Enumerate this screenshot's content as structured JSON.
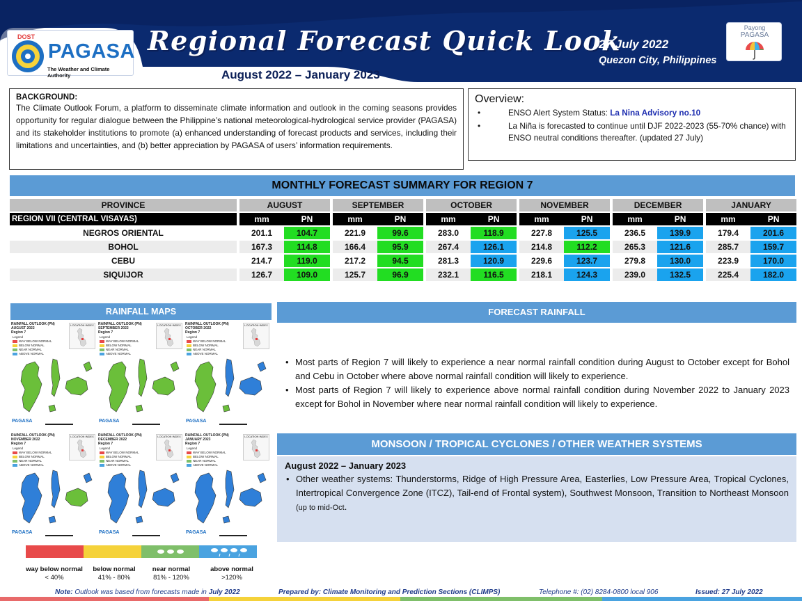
{
  "header": {
    "dost": "DOST",
    "org_name": "PAGASA",
    "org_sub": "The Weather and Climate Authority",
    "title": "Regional Forecast Quick Look",
    "period": "August 2022 – January 2023",
    "date": "27 July 2022",
    "place": "Quezon City, Philippines",
    "payong_line1": "Payong",
    "payong_line2": "PAGASA"
  },
  "background": {
    "heading": "BACKGROUND:",
    "text": "The Climate Outlook Forum, a platform to disseminate climate information and outlook in the coming seasons provides opportunity for regular dialogue between the Philippine’s national meteorological-hydrological service provider (PAGASA) and its stakeholder institutions to promote (a) enhanced understanding of forecast products and services, including their limitations and uncertainties, and (b) better appreciation by PAGASA of users’ information requirements."
  },
  "overview": {
    "heading": "Overview:",
    "item1_prefix": "ENSO Alert System Status: ",
    "item1_advisory": "La Nina Advisory no.10",
    "item2": "La Niña is forecasted to continue until DJF 2022-2023  (55-70% chance) with ENSO neutral conditions thereafter. (updated 27 July)"
  },
  "table": {
    "title": "MONTHLY FORECAST SUMMARY FOR REGION 7",
    "province_header": "PROVINCE",
    "region_label": "REGION VII (CENTRAL VISAYAS)",
    "months": [
      "AUGUST",
      "SEPTEMBER",
      "OCTOBER",
      "NOVEMBER",
      "DECEMBER",
      "JANUARY"
    ],
    "mm_label": "mm",
    "pn_label": "PN",
    "rows": [
      {
        "province": "NEGROS ORIENTAL",
        "values": [
          [
            "201.1",
            "104.7",
            "g"
          ],
          [
            "221.9",
            "99.6",
            "g"
          ],
          [
            "283.0",
            "118.9",
            "g"
          ],
          [
            "227.8",
            "125.5",
            "b"
          ],
          [
            "236.5",
            "139.9",
            "b"
          ],
          [
            "179.4",
            "201.6",
            "b"
          ]
        ]
      },
      {
        "province": "BOHOL",
        "values": [
          [
            "167.3",
            "114.8",
            "g"
          ],
          [
            "166.4",
            "95.9",
            "g"
          ],
          [
            "267.4",
            "126.1",
            "b"
          ],
          [
            "214.8",
            "112.2",
            "g"
          ],
          [
            "265.3",
            "121.6",
            "b"
          ],
          [
            "285.7",
            "159.7",
            "b"
          ]
        ]
      },
      {
        "province": "CEBU",
        "values": [
          [
            "214.7",
            "119.0",
            "g"
          ],
          [
            "217.2",
            "94.5",
            "g"
          ],
          [
            "281.3",
            "120.9",
            "b"
          ],
          [
            "229.6",
            "123.7",
            "b"
          ],
          [
            "279.8",
            "130.0",
            "b"
          ],
          [
            "223.9",
            "170.0",
            "b"
          ]
        ]
      },
      {
        "province": "SIQUIJOR",
        "values": [
          [
            "126.7",
            "109.0",
            "g"
          ],
          [
            "125.7",
            "96.9",
            "g"
          ],
          [
            "232.1",
            "116.5",
            "g"
          ],
          [
            "218.1",
            "124.3",
            "b"
          ],
          [
            "239.0",
            "132.5",
            "b"
          ],
          [
            "225.4",
            "182.0",
            "b"
          ]
        ]
      }
    ]
  },
  "rainfall_maps": {
    "title": "RAINFALL MAPS",
    "tiles": [
      {
        "l1": "RAINFALL OUTLOOK (PN)",
        "l2": "AUGUST 2022",
        "l3": "Region 7"
      },
      {
        "l1": "RAINFALL OUTLOOK (PN)",
        "l2": "SEPTEMBER 2022",
        "l3": "Region 7"
      },
      {
        "l1": "RAINFALL OUTLOOK (PN)",
        "l2": "OCTOBER 2022",
        "l3": "Region 7"
      },
      {
        "l1": "RAINFALL OUTLOOK (PN)",
        "l2": "NOVEMBER 2022",
        "l3": "Region 7"
      },
      {
        "l1": "RAINFALL OUTLOOK (PN)",
        "l2": "DECEMBER 2022",
        "l3": "Region 7"
      },
      {
        "l1": "RAINFALL OUTLOOK (PN)",
        "l2": "JANUARY 2023",
        "l3": "Region 7"
      }
    ],
    "legend_title": "Legend",
    "legend_items": [
      "WAY BELOW NORMAL",
      "BELOW NORMAL",
      "NEAR NORMAL",
      "ABOVE NORMAL"
    ],
    "inset_label": "LOCATION INDEX",
    "brand": "PAGASA",
    "categories": [
      {
        "name": "way below normal",
        "range": "< 40%"
      },
      {
        "name": "below normal",
        "range": "41% -  80%"
      },
      {
        "name": "near normal",
        "range": "81% - 120%"
      },
      {
        "name": "above normal",
        "range": ">120%"
      }
    ]
  },
  "forecast_rainfall": {
    "title": "FORECAST RAINFALL",
    "bullets": [
      "Most parts of Region 7 will likely to experience a near normal rainfall condition during August to October except for Bohol and Cebu in October where above normal rainfall condition will likely to experience.",
      "Most parts of Region 7 will likely to experience above normal rainfall condition during November 2022 to January 2023 except for Bohol in November where near normal rainfall condition will likely to experience."
    ]
  },
  "monsoon": {
    "title": "MONSOON / TROPICAL CYCLONES / OTHER WEATHER SYSTEMS",
    "period": "August 2022 – January 2023",
    "text": "Other weather systems: Thunderstorms,  Ridge of High Pressure Area,  Easterlies, Low Pressure Area, Tropical Cyclones, Intertropical Convergence Zone (ITCZ), Tail-end of Frontal system), Southwest Monsoon, Transition to Northeast Monsoon ",
    "small": "(up to mid-Oct",
    "end": "."
  },
  "footer": {
    "note_label": "Note:",
    "note_text": " Outlook was based from forecasts made in ",
    "note_month": "July 2022",
    "prepared": "Prepared by: Climate Monitoring and Prediction Sections (CLIMPS)",
    "telephone": "Telephone #: (02) 8284-0800 local 906",
    "issued": "Issued: 27 July 2022"
  },
  "colors": {
    "navy": "#0b2a6f",
    "accent_blue": "#5b9bd5",
    "green": "#22dd22",
    "blue": "#1aa3ee",
    "way_below": "#e84a4a",
    "below": "#f5d23a",
    "near": "#7fbf6a",
    "above": "#4aa3e0"
  }
}
